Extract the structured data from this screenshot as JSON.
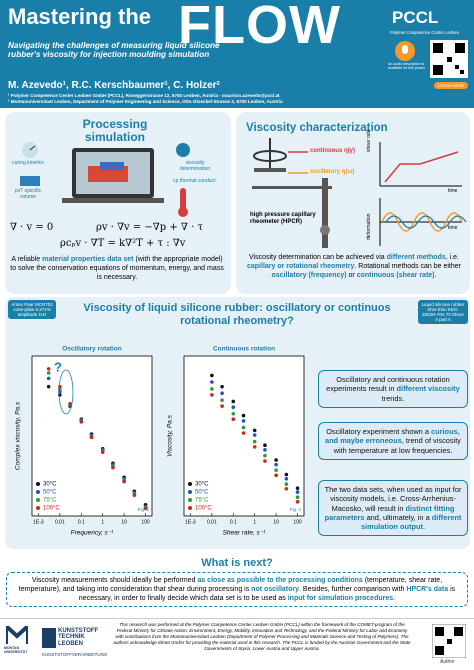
{
  "header": {
    "title": "Mastering the",
    "title_big": "FLOW",
    "subtitle": "Navigating the challenges of measuring liquid silicone rubber's viscosity for injection moulding simulation",
    "authors": "M. Azevedo¹, R.C. Kerschbaumer¹, C. Holzer²",
    "affiliations": [
      "¹ Polymer Competence Center Leoben GmbH (PCCL), Roseggerstrasse 12, 8700 Leoben, Austria - mauricio.azevedo@pccl.at",
      "² Montanuniversitaet Leoben, Department of Polymer Engineering and Science, Otto Gloeckel-Strasse 2, 8700 Leoben, Austria"
    ],
    "logo": "PCCL",
    "logo_sub": "Polymer Competence Center Leoben",
    "audio": "An audio description is available for this poster",
    "listen": "LISTEN HERE"
  },
  "processing": {
    "title": "Processing simulation",
    "labels": [
      "curing kinetics",
      "pvT specific volume",
      "viscosity determination",
      "cp thermal conduct."
    ],
    "equations": [
      "∇ · v = 0",
      "ρv · ∇v = −∇p + ∇ · τ",
      "ρcₚv · ∇T = k∇²T + τ : ∇v"
    ],
    "text": [
      "A reliable ",
      "material properties data set",
      " (with the appropriate model) to solve the conservation equations of momentum, energy, and mass is necessary."
    ]
  },
  "viscosity": {
    "title": "Viscosity characterization",
    "labels": [
      "continuous η(γ̇)",
      "oscillatory η(ω)",
      "high pressure capillary rheometer (HPCR)",
      "shear rate",
      "time",
      "deformation",
      "time"
    ],
    "text": [
      "Viscosity determination can be achieved via ",
      "different methods",
      ", i.e. ",
      "capillary or rotational rheometry",
      ". ",
      "Rotational methods can be either ",
      "oscillatory (frequency)",
      " or ",
      "continuous (shear rate)",
      "."
    ]
  },
  "banner": {
    "title": "Viscosity of liquid silicone rubber: oscillatory or continuos rotational rheometry?",
    "left_note": "Anton Paar MCR702 cone-plate 0.271% amplitude 1Hz",
    "right_note": "Liquid silicone rubber Shin-Etsu KEG-2003H-70A 70 Shore A part A"
  },
  "chart_data": [
    {
      "type": "scatter",
      "title": "Oscillatory rotation",
      "question": "?",
      "fig": "Fig. 1",
      "x_label": "Frequency, s⁻¹",
      "y_label": "Complex viscosity, Pa.s",
      "log_x": true,
      "log_y": true,
      "legend": "lower left",
      "xlim": [
        0.0005,
        200
      ],
      "ylim": [
        50,
        1000000
      ],
      "xticks": [
        {
          "value": 0.001,
          "label": "1E-3"
        },
        0.01,
        0.1,
        1,
        10,
        100
      ],
      "x": [
        0.003,
        0.01,
        0.03,
        0.1,
        0.3,
        1,
        3,
        10,
        30,
        100
      ],
      "series": [
        {
          "name": "30°C",
          "color": "#111111",
          "values": [
            150000,
            90000,
            45000,
            20000,
            8000,
            3200,
            1300,
            550,
            230,
            100
          ]
        },
        {
          "name": "50°C",
          "color": "#1f4fd8",
          "values": [
            250000,
            110000,
            48000,
            19000,
            7500,
            3000,
            1200,
            500,
            210,
            90
          ]
        },
        {
          "name": "75°C",
          "color": "#2e9a3a",
          "values": [
            350000,
            130000,
            50000,
            18000,
            7000,
            2800,
            1100,
            460,
            200,
            85
          ]
        },
        {
          "name": "100°C",
          "color": "#d62020",
          "values": [
            450000,
            150000,
            52000,
            17000,
            6500,
            2600,
            1000,
            420,
            180,
            80
          ]
        }
      ]
    },
    {
      "type": "scatter",
      "title": "Continuous rotation",
      "fig": "Fig. 2",
      "x_label": "Shear rate, s⁻¹",
      "y_label": "Viscosity, Pa.s",
      "log_x": true,
      "log_y": true,
      "legend": "lower left",
      "xlim": [
        0.0005,
        200
      ],
      "ylim": [
        50,
        1000000
      ],
      "xticks": [
        {
          "value": 0.001,
          "label": "1E-3"
        },
        0.01,
        0.1,
        1,
        10,
        100
      ],
      "x": [
        0.01,
        0.03,
        0.1,
        0.3,
        1,
        3,
        10,
        30,
        100
      ],
      "series": [
        {
          "name": "30°C",
          "color": "#111111",
          "values": [
            300000,
            150000,
            60000,
            25000,
            10000,
            4000,
            1600,
            650,
            280
          ]
        },
        {
          "name": "50°C",
          "color": "#1f4fd8",
          "values": [
            200000,
            100000,
            42000,
            18000,
            7500,
            3000,
            1200,
            500,
            220
          ]
        },
        {
          "name": "75°C",
          "color": "#2e9a3a",
          "values": [
            130000,
            65000,
            28000,
            12000,
            5000,
            2100,
            850,
            360,
            160
          ]
        },
        {
          "name": "100°C",
          "color": "#d62020",
          "values": [
            90000,
            45000,
            20000,
            8500,
            3600,
            1500,
            620,
            270,
            120
          ]
        }
      ]
    }
  ],
  "findings": [
    [
      "Oscillatory and continuous rotation experiments result in ",
      "different viscosity",
      " trends."
    ],
    [
      "Oscillatory experiment shown a ",
      "curious, and maybe erroneous",
      ", trend of viscosity with temperature at low frequencies."
    ],
    [
      "The two data sets, when used as input for viscosity models, i.e. Cross-Arrhenius-Macosko, will result in ",
      "distinct fitting parameters",
      " and, ultimately, in a ",
      "different simulation output",
      "."
    ]
  ],
  "next": {
    "title": "What is next?",
    "text": [
      "Viscosity measurements should ideally be performed ",
      "as close as possible to the processing conditions",
      " (temperature, shear rate, temperature), and taking into consideration that shear during processing is ",
      "not oscillatory",
      ". Besides, further comparison with ",
      "HPCR's data",
      " is necessary, in order to finally decide which data set is to be used as ",
      "input for simulation procedures",
      "."
    ]
  },
  "footer": {
    "logo_left": "MONTAN UNIVERSITÄT",
    "logo_mid": "KUNSTSTOFF TECHNIK LEOBEN",
    "logo_mid_sub": "KUNSTSTOFFVERARBEITUNG",
    "funding": "This research was performed at the Polymer Competence Center Leoben GmbH (PCCL) within the framework of the COMET-program of the Federal Ministry for Climate Action, Environment, Energy, Mobility, Innovation and Technology, and the Federal Ministry for Labor and Economy with contributions from the Montanuniversitaet Leoben (Department of Polymer Processing and Materials Science and Testing of Polymers). The authors acknowledge Elmet GmbH for providing the material used in this research. The PCCL is funded by the Austrian Government and the State Governments of Styria, Lower Austria and Upper Austria.",
    "author": "Author"
  }
}
